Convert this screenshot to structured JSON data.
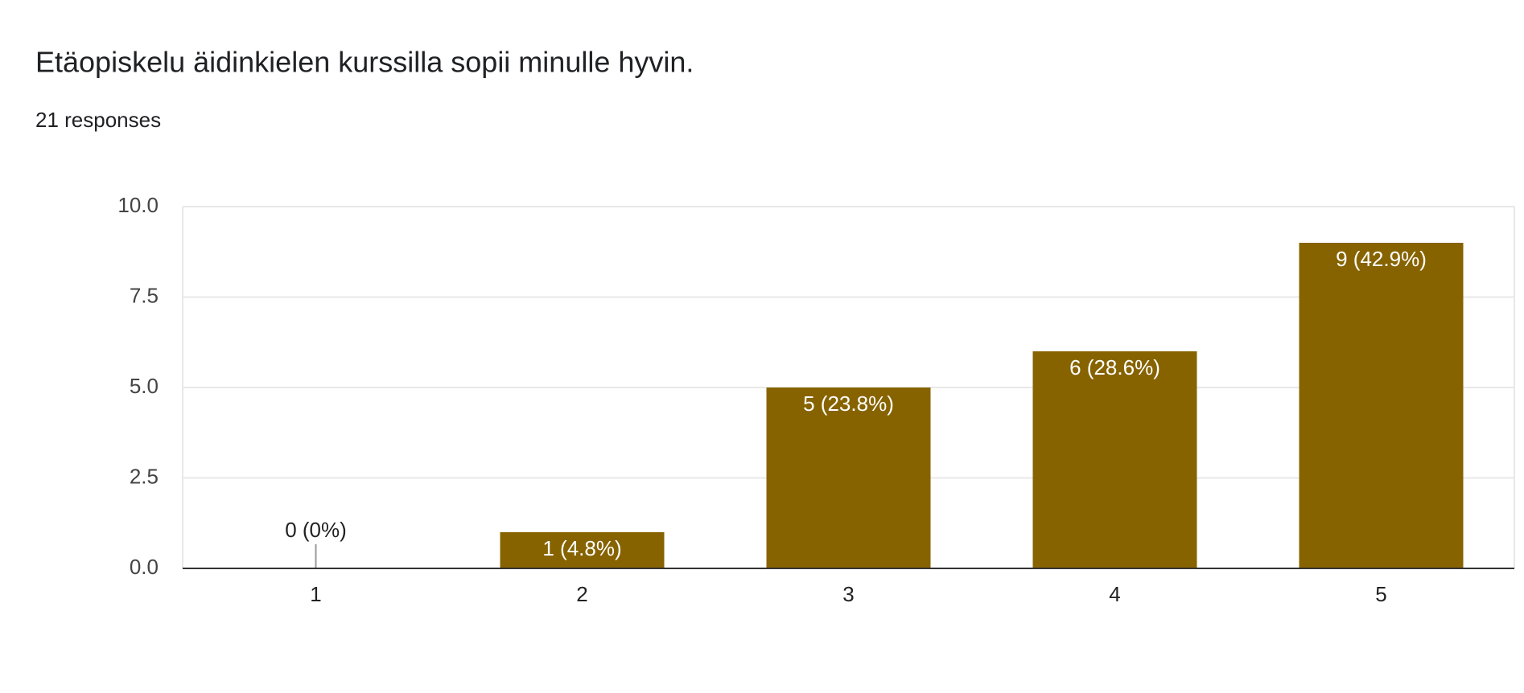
{
  "chart_data": {
    "type": "bar",
    "title": "Etäopiskelu äidinkielen kurssilla sopii minulle hyvin.",
    "subtitle": "21 responses",
    "categories": [
      "1",
      "2",
      "3",
      "4",
      "5"
    ],
    "values": [
      0,
      1,
      5,
      6,
      9
    ],
    "value_labels": [
      "0 (0%)",
      "1 (4.8%)",
      "5 (23.8%)",
      "6 (28.6%)",
      "9 (42.9%)"
    ],
    "color": "#876300",
    "ylim": [
      0,
      10
    ],
    "yticks": [
      {
        "value": 0,
        "label": "0.0"
      },
      {
        "value": 2.5,
        "label": "2.5"
      },
      {
        "value": 5,
        "label": "5.0"
      },
      {
        "value": 7.5,
        "label": "7.5"
      },
      {
        "value": 10,
        "label": "10.0"
      }
    ],
    "grid": true
  }
}
